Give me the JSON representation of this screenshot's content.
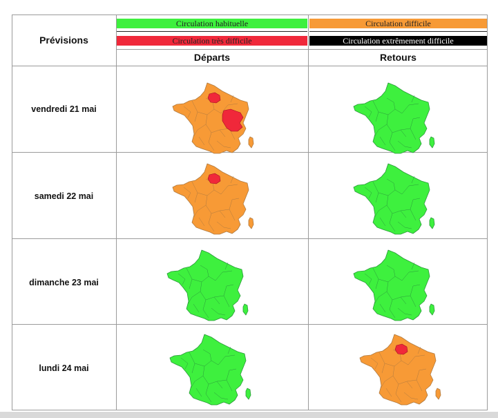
{
  "header": {
    "title": "Prévisions",
    "columns": {
      "departures": "Départs",
      "returns": "Retours"
    }
  },
  "legend": [
    {
      "label": "Circulation habituelle",
      "color": "#3ef03e",
      "text_color": "#222222"
    },
    {
      "label": "Circulation difficile",
      "color": "#f79a36",
      "text_color": "#222222"
    },
    {
      "label": "Circulation très difficile",
      "color": "#f0283a",
      "text_color": "#222222"
    },
    {
      "label": "Circulation extrêmement difficile",
      "color": "#000000",
      "text_color": "#ffffff"
    }
  ],
  "rows": [
    {
      "day": "vendredi 21 mai",
      "departures": {
        "base": "orange",
        "red_paris": true,
        "red_east": true
      },
      "returns": {
        "base": "green",
        "red_paris": false,
        "red_east": false
      }
    },
    {
      "day": "samedi 22 mai",
      "departures": {
        "base": "orange",
        "red_paris": true,
        "red_east": false
      },
      "returns": {
        "base": "green",
        "red_paris": false,
        "red_east": false
      }
    },
    {
      "day": "dimanche 23 mai",
      "departures": {
        "base": "green",
        "red_paris": false,
        "red_east": false
      },
      "returns": {
        "base": "green",
        "red_paris": false,
        "red_east": false
      }
    },
    {
      "day": "lundi 24 mai",
      "departures": {
        "base": "green",
        "red_paris": false,
        "red_east": false
      },
      "returns": {
        "base": "orange",
        "red_paris": true,
        "red_east": false
      }
    }
  ],
  "colors": {
    "green": "#3ef03e",
    "orange": "#f79a36",
    "red": "#f0283a",
    "border_green": "#2a9a3a",
    "border_orange": "#b07a40"
  }
}
